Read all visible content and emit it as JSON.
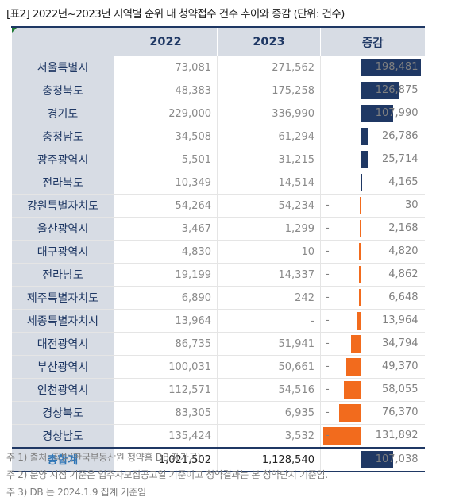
{
  "title": "[표2] 2022년~2023년 지역별 순위 내 청약접수 건수 추이와 증감 (단위: 건수)",
  "headers": [
    "",
    "2022",
    "2023",
    "증감"
  ],
  "rows": [
    {
      "region": "서울특별시",
      "y2022": "73,081",
      "y2023": "271,562",
      "dash": "",
      "delta": "198,481",
      "value": 198481
    },
    {
      "region": "충청북도",
      "y2022": "48,383",
      "y2023": "175,258",
      "dash": "",
      "delta": "126,875",
      "value": 126875
    },
    {
      "region": "경기도",
      "y2022": "229,000",
      "y2023": "336,990",
      "dash": "",
      "delta": "107,990",
      "value": 107990
    },
    {
      "region": "충청남도",
      "y2022": "34,508",
      "y2023": "61,294",
      "dash": "",
      "delta": "26,786",
      "value": 26786
    },
    {
      "region": "광주광역시",
      "y2022": "5,501",
      "y2023": "31,215",
      "dash": "",
      "delta": "25,714",
      "value": 25714
    },
    {
      "region": "전라북도",
      "y2022": "10,349",
      "y2023": "14,514",
      "dash": "",
      "delta": "4,165",
      "value": 4165
    },
    {
      "region": "강원특별자치도",
      "y2022": "54,264",
      "y2023": "54,234",
      "dash": "-",
      "delta": "30",
      "value": -30
    },
    {
      "region": "울산광역시",
      "y2022": "3,467",
      "y2023": "1,299",
      "dash": "-",
      "delta": "2,168",
      "value": -2168
    },
    {
      "region": "대구광역시",
      "y2022": "4,830",
      "y2023": "10",
      "dash": "-",
      "delta": "4,820",
      "value": -4820
    },
    {
      "region": "전라남도",
      "y2022": "19,199",
      "y2023": "14,337",
      "dash": "-",
      "delta": "4,862",
      "value": -4862
    },
    {
      "region": "제주특별자치도",
      "y2022": "6,890",
      "y2023": "242",
      "dash": "-",
      "delta": "6,648",
      "value": -6648
    },
    {
      "region": "세종특별자치시",
      "y2022": "13,964",
      "y2023": "-",
      "dash": "-",
      "delta": "13,964",
      "value": -13964
    },
    {
      "region": "대전광역시",
      "y2022": "86,735",
      "y2023": "51,941",
      "dash": "-",
      "delta": "34,794",
      "value": -34794
    },
    {
      "region": "부산광역시",
      "y2022": "100,031",
      "y2023": "50,661",
      "dash": "-",
      "delta": "49,370",
      "value": -49370
    },
    {
      "region": "인천광역시",
      "y2022": "112,571",
      "y2023": "54,516",
      "dash": "-",
      "delta": "58,055",
      "value": -58055
    },
    {
      "region": "경상북도",
      "y2022": "83,305",
      "y2023": "6,935",
      "dash": "-",
      "delta": "76,370",
      "value": -76370
    },
    {
      "region": "경상남도",
      "y2022": "135,424",
      "y2023": "3,532",
      "dash": "-",
      "delta": "131,892",
      "value": -131892
    }
  ],
  "total": {
    "region": "총합계",
    "y2022": "1,021,502",
    "y2023": "1,128,540",
    "dash": "",
    "delta": "107,038",
    "value": 107038
  },
  "notes": [
    "주 1) 출처: 직방(한국부동산원 청약홈 DB 재가공)",
    "주 2) 분양 시점 기준은 입주자모집공고일 기준이고 청약결과는 본 청약단지 기준임.",
    "주 3) DB 는 2024.1.9 집계 기준임"
  ],
  "colors": {
    "positive": "#1f3864",
    "negative": "#f26b1d",
    "header_bg": "#d7dce4"
  }
}
